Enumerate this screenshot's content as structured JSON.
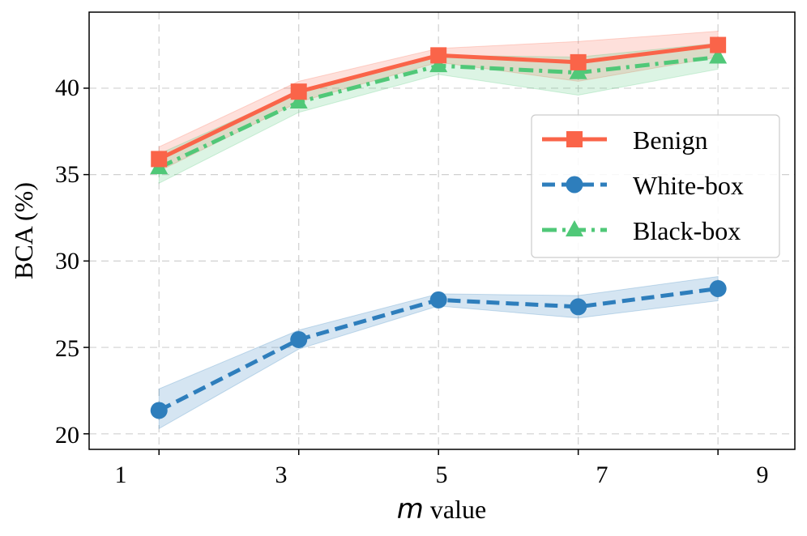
{
  "chart_data": {
    "type": "line",
    "title": "",
    "xlabel_italic": "m",
    "xlabel_rest": " value",
    "ylabel": "BCA (%)",
    "x": [
      1,
      3,
      5,
      7,
      9
    ],
    "xticks": [
      "1",
      "3",
      "5",
      "7",
      "9"
    ],
    "yticks": [
      "20",
      "25",
      "30",
      "35",
      "40"
    ],
    "xlim": [
      0,
      10.1
    ],
    "ylim": [
      19.1,
      44.4
    ],
    "grid": true,
    "legend_position": "center-right",
    "series": [
      {
        "name": "Benign",
        "key": "benign",
        "values": [
          35.9,
          39.8,
          41.9,
          41.5,
          42.5
        ],
        "lower": [
          35.2,
          39.2,
          41.5,
          40.4,
          41.8
        ],
        "upper": [
          36.6,
          40.4,
          42.3,
          42.7,
          43.3
        ],
        "color": "#fa6449",
        "marker": "square",
        "dash": "solid"
      },
      {
        "name": "White-box",
        "key": "white-box",
        "values": [
          21.35,
          25.45,
          27.75,
          27.35,
          28.4
        ],
        "lower": [
          20.3,
          24.9,
          27.4,
          26.7,
          27.7
        ],
        "upper": [
          22.6,
          26.0,
          28.1,
          28.0,
          29.1
        ],
        "color": "#2e7ebc",
        "marker": "circle",
        "dash": "dashed"
      },
      {
        "name": "Black-box",
        "key": "black-box",
        "values": [
          35.4,
          39.2,
          41.3,
          40.9,
          41.8
        ],
        "lower": [
          34.5,
          38.6,
          40.8,
          39.6,
          41.1
        ],
        "upper": [
          36.2,
          39.8,
          41.9,
          41.8,
          42.6
        ],
        "color": "#50c878",
        "marker": "triangle",
        "dash": "dashdot"
      }
    ]
  }
}
